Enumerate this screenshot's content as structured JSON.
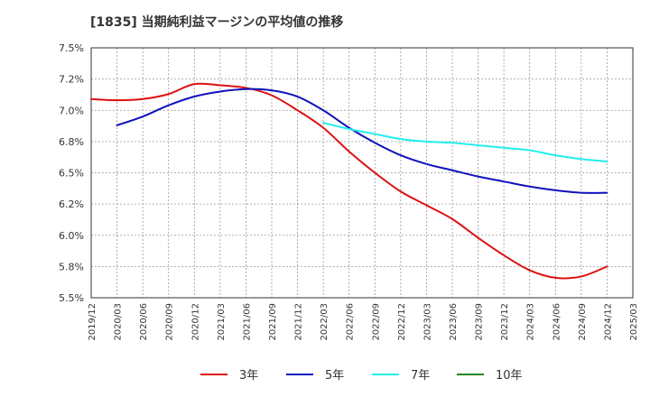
{
  "chart_data": {
    "type": "line",
    "title": "[1835]  当期純利益マージンの平均値の推移",
    "xlabel": "",
    "ylabel": "",
    "ylim": [
      5.5,
      7.5
    ],
    "grid": true,
    "legend_position": "bottom",
    "y_ticks": [
      "7.5%",
      "7.2%",
      "7.0%",
      "6.8%",
      "6.5%",
      "6.2%",
      "6.0%",
      "5.8%",
      "5.5%"
    ],
    "y_tick_values": [
      7.5,
      7.25,
      7.0,
      6.75,
      6.5,
      6.25,
      6.0,
      5.75,
      5.5
    ],
    "x_ticks": [
      "2019/12",
      "2020/03",
      "2020/06",
      "2020/09",
      "2020/12",
      "2021/03",
      "2021/06",
      "2021/09",
      "2021/12",
      "2022/03",
      "2022/06",
      "2022/09",
      "2022/12",
      "2023/03",
      "2023/06",
      "2023/09",
      "2023/12",
      "2024/03",
      "2024/06",
      "2024/09",
      "2024/12",
      "2025/03"
    ],
    "series": [
      {
        "name": "3年",
        "color": "#dd1111",
        "x": [
          "2019/12",
          "2020/03",
          "2020/06",
          "2020/09",
          "2020/12",
          "2021/03",
          "2021/06",
          "2021/09",
          "2021/12",
          "2022/03",
          "2022/06",
          "2022/09",
          "2022/12",
          "2023/03",
          "2023/06",
          "2023/09",
          "2023/12",
          "2024/03",
          "2024/06",
          "2024/09",
          "2024/12"
        ],
        "values": [
          7.09,
          7.08,
          7.09,
          7.13,
          7.21,
          7.2,
          7.18,
          7.12,
          7.0,
          6.86,
          6.67,
          6.5,
          6.35,
          6.24,
          6.13,
          5.98,
          5.84,
          5.72,
          5.66,
          5.67,
          5.75
        ]
      },
      {
        "name": "5年",
        "color": "#1111bb",
        "x": [
          "2020/03",
          "2020/06",
          "2020/09",
          "2020/12",
          "2021/03",
          "2021/06",
          "2021/09",
          "2021/12",
          "2022/03",
          "2022/06",
          "2022/09",
          "2022/12",
          "2023/03",
          "2023/06",
          "2023/09",
          "2023/12",
          "2024/03",
          "2024/06",
          "2024/09",
          "2024/12"
        ],
        "values": [
          6.88,
          6.95,
          7.04,
          7.11,
          7.15,
          7.17,
          7.16,
          7.11,
          7.0,
          6.86,
          6.74,
          6.64,
          6.57,
          6.52,
          6.47,
          6.43,
          6.39,
          6.36,
          6.34,
          6.34
        ]
      },
      {
        "name": "7年",
        "color": "#22eeee",
        "x": [
          "2022/03",
          "2022/06",
          "2022/09",
          "2022/12",
          "2023/03",
          "2023/06",
          "2023/09",
          "2023/12",
          "2024/03",
          "2024/06",
          "2024/09",
          "2024/12"
        ],
        "values": [
          6.9,
          6.85,
          6.81,
          6.77,
          6.75,
          6.74,
          6.72,
          6.7,
          6.68,
          6.64,
          6.61,
          6.59
        ]
      },
      {
        "name": "10年",
        "color": "#228822",
        "x": [],
        "values": []
      }
    ]
  }
}
